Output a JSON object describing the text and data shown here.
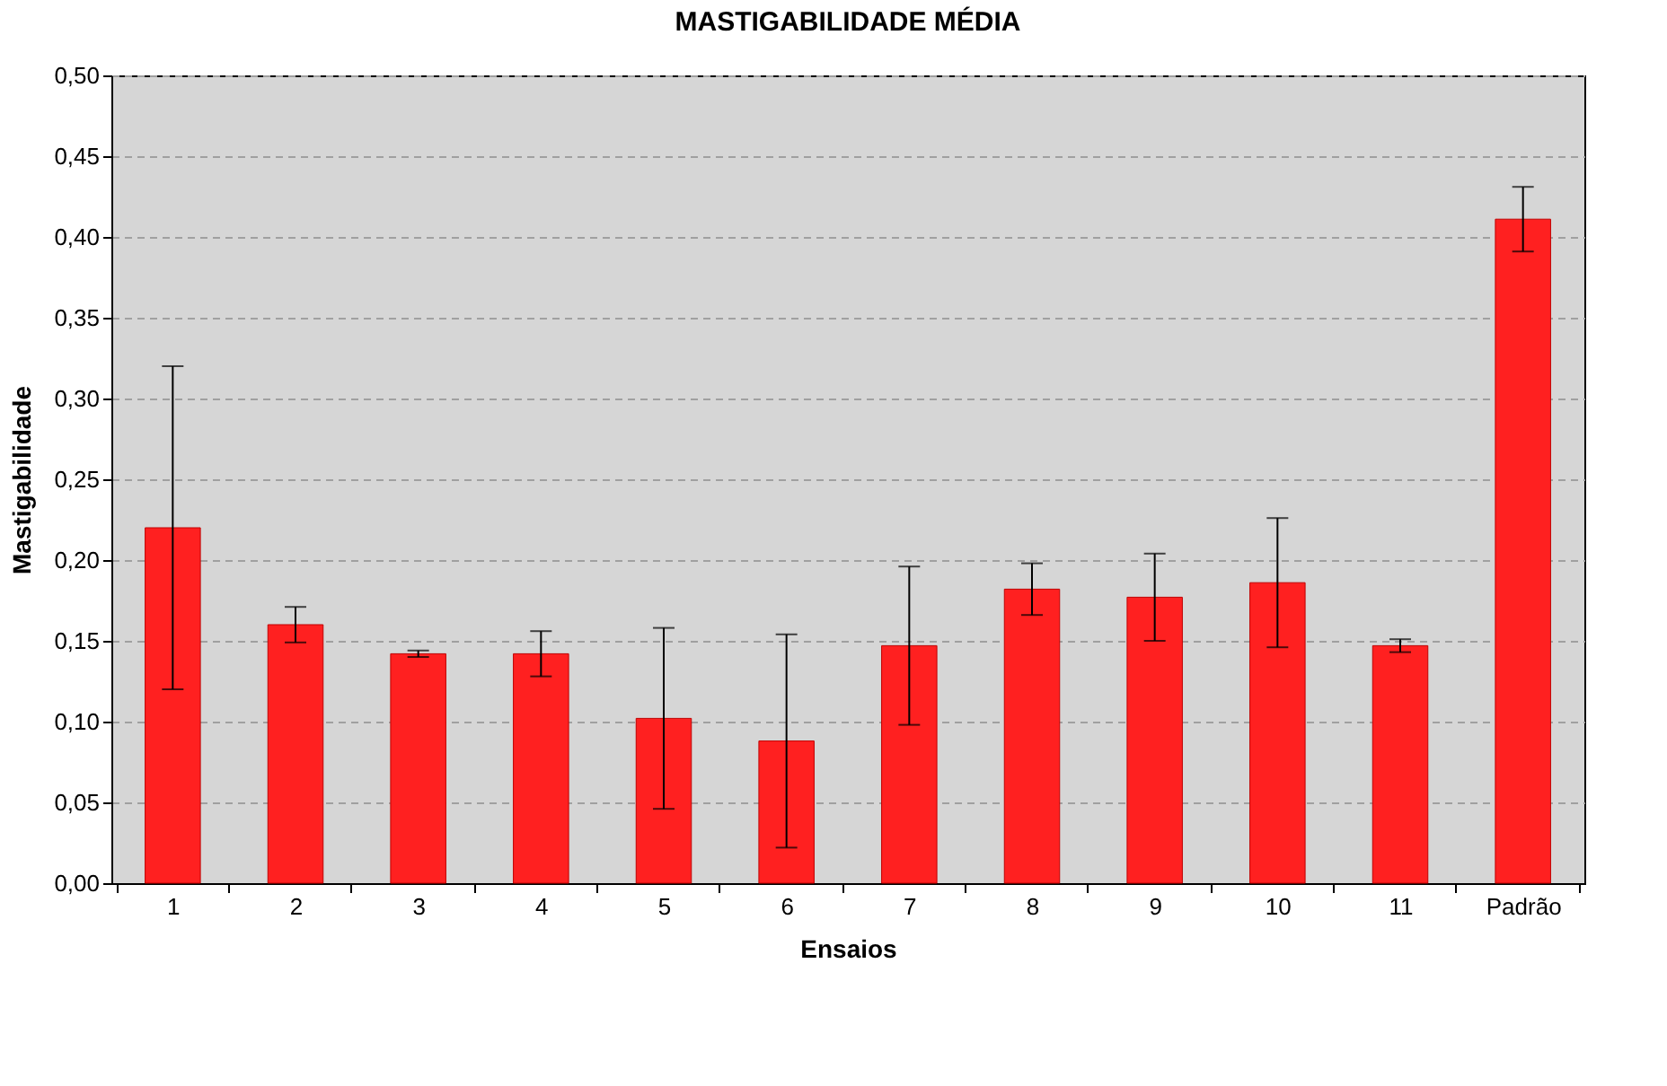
{
  "chart_data": {
    "type": "bar",
    "title": "MASTIGABILIDADE MÉDIA",
    "xlabel": "Ensaios",
    "ylabel": "Mastigabilidade",
    "categories": [
      "1",
      "2",
      "3",
      "4",
      "5",
      "6",
      "7",
      "8",
      "9",
      "10",
      "11",
      "Padrão"
    ],
    "values": [
      0.22,
      0.16,
      0.142,
      0.142,
      0.102,
      0.088,
      0.147,
      0.182,
      0.177,
      0.186,
      0.147,
      0.411
    ],
    "errors": [
      0.1,
      0.011,
      0.002,
      0.014,
      0.056,
      0.066,
      0.049,
      0.016,
      0.027,
      0.04,
      0.004,
      0.02
    ],
    "color": "#ff2020",
    "ylim": [
      0,
      0.5
    ],
    "yticks": [
      {
        "value": 0,
        "label": "0,00"
      },
      {
        "value": 0.05,
        "label": "0,05"
      },
      {
        "value": 0.1,
        "label": "0,10"
      },
      {
        "value": 0.15,
        "label": "0,15"
      },
      {
        "value": 0.2,
        "label": "0,20"
      },
      {
        "value": 0.25,
        "label": "0,25"
      },
      {
        "value": 0.3,
        "label": "0,30"
      },
      {
        "value": 0.35,
        "label": "0,35"
      },
      {
        "value": 0.4,
        "label": "0,40"
      },
      {
        "value": 0.45,
        "label": "0,45"
      },
      {
        "value": 0.5,
        "label": "0,50"
      }
    ],
    "grid": "y"
  }
}
